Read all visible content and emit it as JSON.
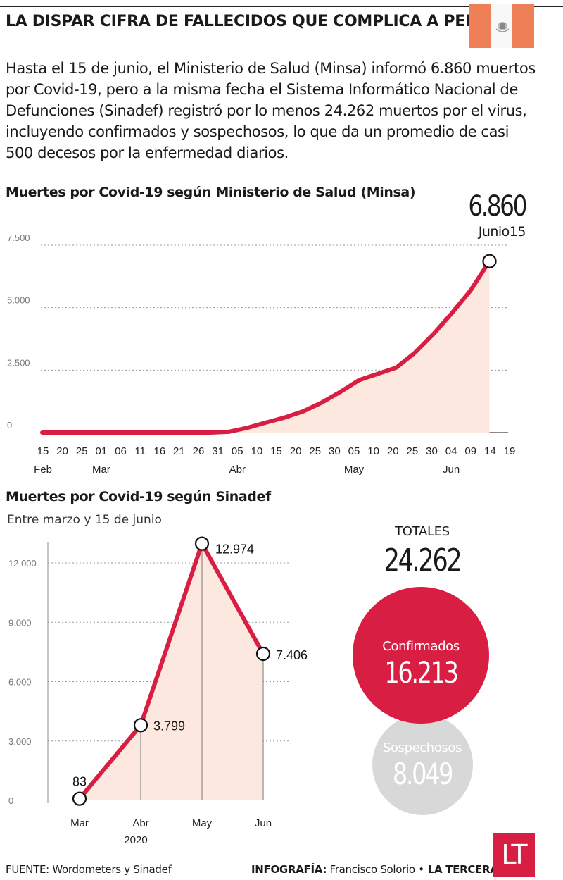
{
  "headline": "LA DISPAR CIFRA DE FALLECIDOS QUE COMPLICA A PERÚ",
  "intro": "Hasta el 15 de junio, el Ministerio de Salud (Minsa) informó 6.860 muertos por Covid-19, pero a la misma fecha el Sistema Informático Nacional de Defunciones (Sinadef) registró por lo menos 24.262 muertos por el virus, incluyendo confirmados y sospechosos, lo que da un promedio de casi 500 decesos por la enfermedad diarios.",
  "colors": {
    "accent": "#d81e42",
    "fill": "#fde8e0",
    "flag_red": "#ef7f56",
    "grey_bubble": "#d8d8d8"
  },
  "chart_data": [
    {
      "type": "area",
      "title": "Muertes por Covid-19  según Ministerio de Salud (Minsa)",
      "highlight": {
        "value": "6.860",
        "label": "Junio15"
      },
      "ylim": [
        0,
        7500
      ],
      "yticks": [
        "0",
        "2.500",
        "5.000",
        "7.500"
      ],
      "ytick_values": [
        0,
        2500,
        5000,
        7500
      ],
      "xtick_labels": [
        "15",
        "20",
        "25",
        "01",
        "06",
        "11",
        "16",
        "21",
        "26",
        "31",
        "05",
        "10",
        "15",
        "20",
        "25",
        "30",
        "05",
        "10",
        "20",
        "25",
        "30",
        "04",
        "09",
        "14",
        "19"
      ],
      "month_labels": [
        "Feb",
        "Mar",
        "Abr",
        "May",
        "Jun"
      ],
      "grid": true,
      "x": [
        "Feb 15",
        "Mar 06",
        "Mar 31",
        "Abr 05",
        "Abr 10",
        "Abr 15",
        "Abr 20",
        "Abr 25",
        "Abr 30",
        "May 05",
        "May 10",
        "May 20",
        "May 25",
        "May 30",
        "Jun 04",
        "Jun 09",
        "Jun 14"
      ],
      "values": [
        0,
        0,
        0,
        30,
        190,
        400,
        600,
        850,
        1200,
        1630,
        2100,
        2600,
        3200,
        3950,
        4800,
        5700,
        6860
      ]
    },
    {
      "type": "area",
      "title": "Muertes por Covid-19 según Sinadef",
      "subtitle": "Entre marzo y 15 de junio",
      "ylim": [
        0,
        12000
      ],
      "yticks": [
        "0",
        "3.000",
        "6.000",
        "9.000",
        "12.000"
      ],
      "ytick_values": [
        0,
        3000,
        6000,
        9000,
        12000
      ],
      "categories": [
        "Mar",
        "Abr",
        "May",
        "Jun"
      ],
      "xlabel_year": "2020",
      "values": [
        83,
        3799,
        12974,
        7406
      ],
      "value_labels": [
        "83",
        "3.799",
        "12.974",
        "7.406"
      ],
      "grid": true
    }
  ],
  "totals": {
    "label": "TOTALES",
    "value": "24.262",
    "confirmed_label": "Confirmados",
    "confirmed_value": "16.213",
    "suspected_label": "Sospechosos",
    "suspected_value": "8.049"
  },
  "footer": {
    "source": "FUENTE: Wordometers y Sinadef",
    "credit_label": "INFOGRAFÍA:",
    "credit_name": " Francisco Solorio •",
    "credit_outlet": " LA TERCERA",
    "logo": "LT"
  }
}
